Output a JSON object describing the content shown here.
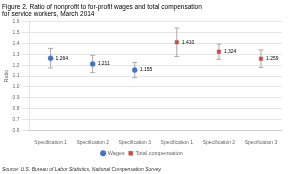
{
  "chart_data": {
    "type": "scatter",
    "title": [
      "Figure 2. Ratio of nonprofit to for-profit wages and total compensation",
      "for service workers, March 2014"
    ],
    "y_label": "Ratio",
    "source": "Source: U.S. Bureau of Labor Statistics, National Compensation Survey.",
    "categories": [
      "Specification 1",
      "Specification 2",
      "Specification 3",
      "Specification 1",
      "Specification 2",
      "Specification 3"
    ],
    "series": [
      {
        "name": "Wages",
        "color": "#4472C4",
        "marker": "circle",
        "values": [
          1.264,
          1.211,
          1.155,
          null,
          null,
          null
        ],
        "value_labels": [
          "1.264",
          "1.211",
          "1.155",
          null,
          null,
          null
        ],
        "yerr_low": [
          0.09,
          0.08,
          0.07,
          null,
          null,
          null
        ],
        "yerr_high": [
          0.09,
          0.08,
          0.07,
          null,
          null,
          null
        ]
      },
      {
        "name": "Total compensation",
        "color": "#C0504D",
        "marker": "square",
        "values": [
          null,
          null,
          null,
          1.41,
          1.324,
          1.259
        ],
        "value_labels": [
          null,
          null,
          null,
          "1.410",
          "1.324",
          "1.259"
        ],
        "yerr_low": [
          null,
          null,
          null,
          0.13,
          0.07,
          0.08
        ],
        "yerr_high": [
          null,
          null,
          null,
          0.13,
          0.07,
          0.08
        ]
      }
    ],
    "ylim": [
      0.6,
      1.6
    ],
    "yticks": [
      0.6,
      0.7,
      0.8,
      0.9,
      {
        "value": 1.0,
        "label": "1.0"
      },
      1.1,
      1.2,
      1.3,
      1.4,
      1.5,
      1.6
    ],
    "grid": "y",
    "legend": "bottom",
    "data_labels": true
  }
}
